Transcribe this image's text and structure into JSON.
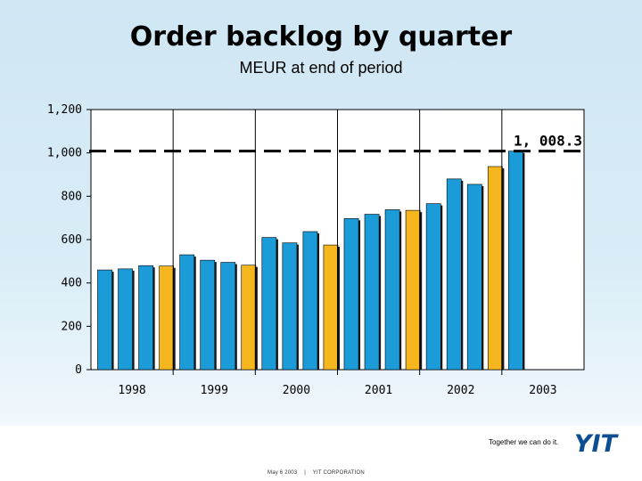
{
  "title": "Order backlog by quarter",
  "subtitle": "MEUR at end of period",
  "chart_data": {
    "type": "bar",
    "x": [
      "1998 Q1",
      "1998 Q2",
      "1998 Q3",
      "1998 Q4",
      "1999 Q1",
      "1999 Q2",
      "1999 Q3",
      "1999 Q4",
      "2000 Q1",
      "2000 Q2",
      "2000 Q3",
      "2000 Q4",
      "2001 Q1",
      "2001 Q2",
      "2001 Q3",
      "2001 Q4",
      "2002 Q1",
      "2002 Q2",
      "2002 Q3",
      "2002 Q4",
      "2003 Q1"
    ],
    "values": [
      460,
      465,
      480,
      478,
      530,
      505,
      495,
      482,
      610,
      585,
      637,
      575,
      697,
      717,
      738,
      735,
      766,
      880,
      855,
      937,
      1008.3
    ],
    "year_labels": [
      "1998",
      "1999",
      "2000",
      "2001",
      "2002",
      "2003"
    ],
    "y_ticks": [
      "0",
      "200",
      "400",
      "600",
      "800",
      "1,000",
      "1,200"
    ],
    "ylim": [
      0,
      1200
    ],
    "reference_line": {
      "value": 1008.3,
      "label": "1, 008.3"
    },
    "colors": {
      "regular": "#1c9bd9",
      "year_end": "#f6b61d"
    },
    "year_end_quarter": "Q4",
    "grid": "vertical lines between years"
  },
  "footer": {
    "tagline": "Together we can do it.",
    "logo": "YIT",
    "date": "May 6 2003",
    "separator": "|",
    "company": "YIT CORPORATION"
  }
}
